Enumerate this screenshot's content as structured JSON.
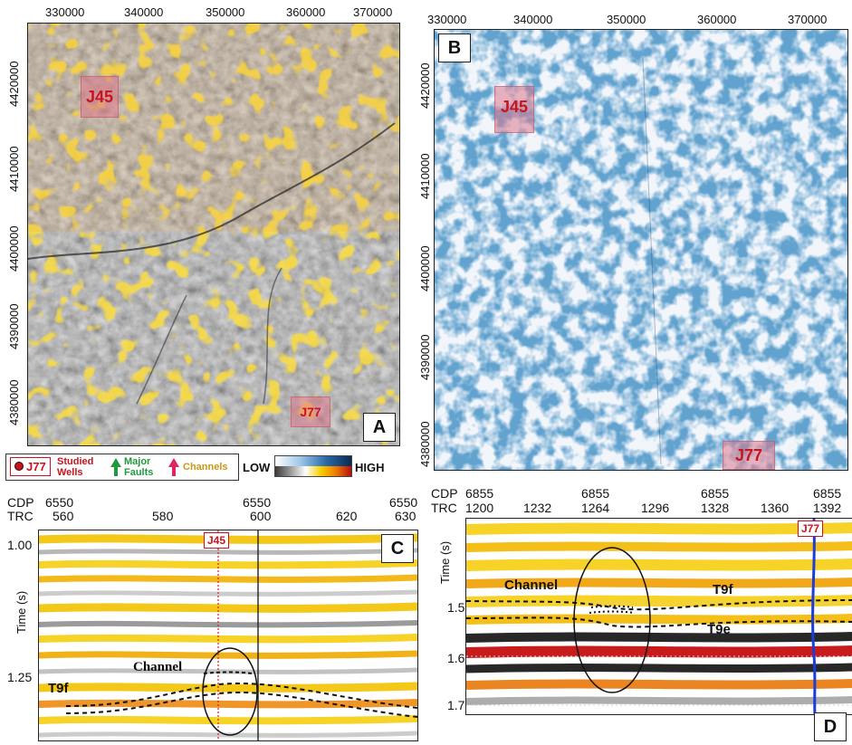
{
  "panel_a": {
    "letter": "A",
    "x_ticks": [
      "330000",
      "340000",
      "350000",
      "360000",
      "370000"
    ],
    "y_ticks": [
      "4420000",
      "4410000",
      "4400000",
      "4390000",
      "4380000"
    ],
    "highlighted_wells": [
      "J45",
      "J77"
    ]
  },
  "panel_b": {
    "letter": "B",
    "x_ticks": [
      "330000",
      "340000",
      "350000",
      "360000",
      "370000"
    ],
    "y_ticks": [
      "4420000",
      "4410000",
      "4400000",
      "4390000",
      "4380000"
    ],
    "highlighted_wells": [
      "J45",
      "J77"
    ]
  },
  "legend": {
    "well_tag": "J77",
    "studied_wells": "Studied Wells",
    "major_faults": "Major Faults",
    "channels": "Channels",
    "low": "LOW",
    "high": "HIGH"
  },
  "panel_c": {
    "letter": "C",
    "cdp_label": "CDP",
    "trc_label": "TRC",
    "cdp_values": [
      "6550",
      "6550",
      "6550"
    ],
    "trc_values": [
      "560",
      "580",
      "600",
      "620",
      "630"
    ],
    "y_title": "Time (s)",
    "y_ticks": [
      "1.00",
      "1.25"
    ],
    "well": "J45",
    "channel_label": "Channel",
    "horizon": "T9f"
  },
  "panel_d": {
    "letter": "D",
    "cdp_label": "CDP",
    "trc_label": "TRC",
    "cdp_values": [
      "6855",
      "6855",
      "6855",
      "6855"
    ],
    "trc_values": [
      "1200",
      "1232",
      "1264",
      "1296",
      "1328",
      "1360",
      "1392"
    ],
    "y_title": "Time (s)",
    "y_ticks": [
      "1.5",
      "1.6",
      "1.7"
    ],
    "well": "J77",
    "channel_label": "Channel",
    "horizon_upper": "T9f",
    "horizon_lower": "T9e"
  },
  "colors": {
    "channel_arrow": "#e0245e",
    "fault_arrow": "#1f9a3c",
    "well_red": "#c8141e"
  }
}
